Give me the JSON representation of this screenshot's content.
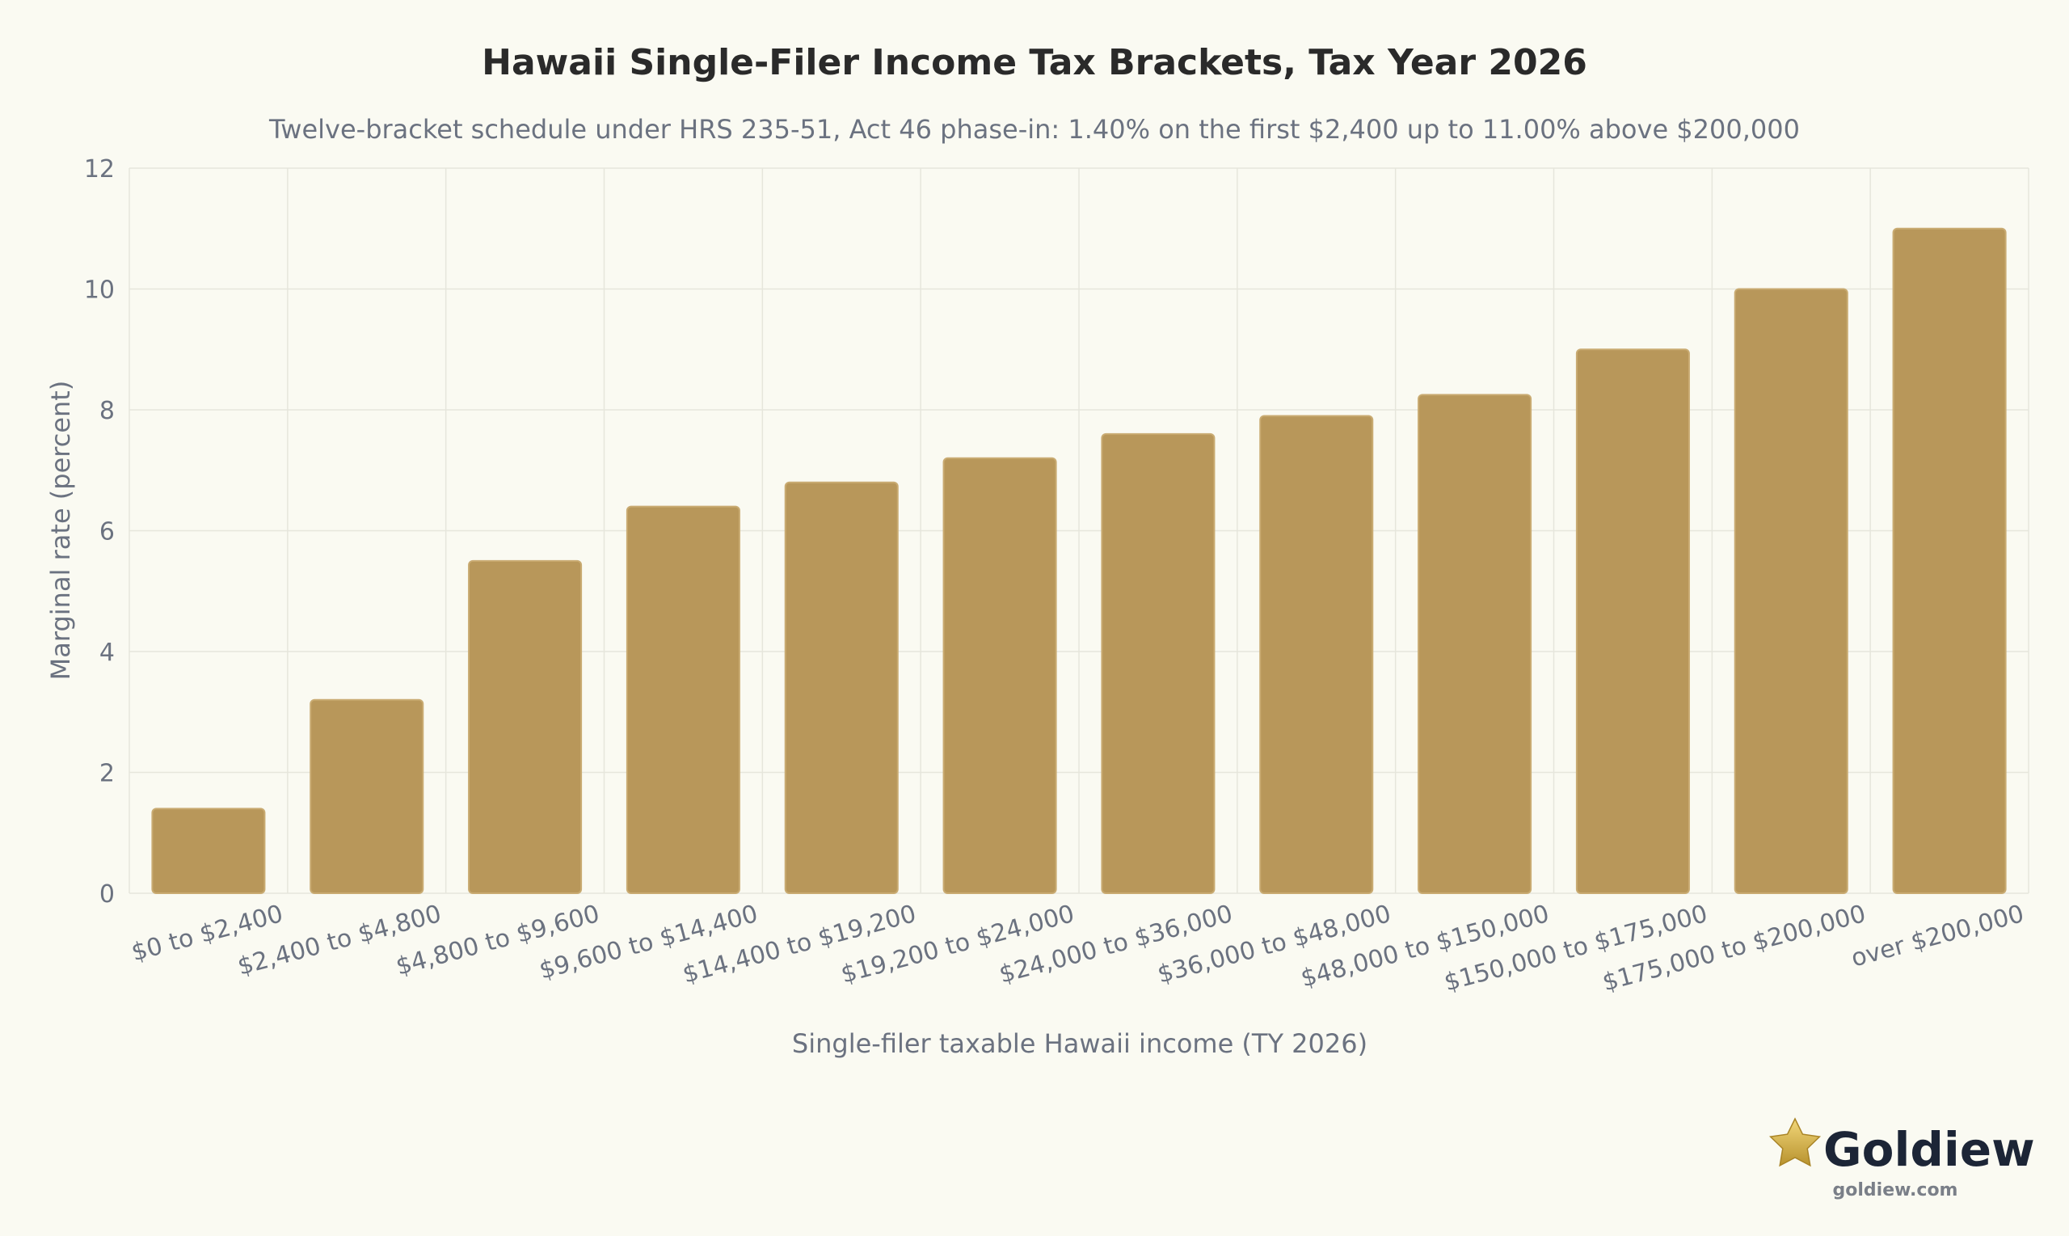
{
  "chart_data": {
    "type": "bar",
    "title": "Hawaii Single-Filer Income Tax Brackets, Tax Year 2026",
    "subtitle": "Twelve-bracket schedule under HRS 235-51, Act 46 phase-in: 1.40% on the first $2,400 up to 11.00% above $200,000",
    "xlabel": "Single-filer taxable Hawaii income (TY 2026)",
    "ylabel": "Marginal rate (percent)",
    "ylim": [
      0,
      12
    ],
    "yticks": [
      0,
      2,
      4,
      6,
      8,
      10,
      12
    ],
    "grid": true,
    "categories": [
      "$0 to $2,400",
      "$2,400 to $4,800",
      "$4,800 to $9,600",
      "$9,600 to $14,400",
      "$14,400 to $19,200",
      "$19,200 to $24,000",
      "$24,000 to $36,000",
      "$36,000 to $48,000",
      "$48,000 to $150,000",
      "$150,000 to $175,000",
      "$175,000 to $200,000",
      "over $200,000"
    ],
    "values": [
      1.4,
      3.2,
      5.5,
      6.4,
      6.8,
      7.2,
      7.6,
      7.9,
      8.25,
      9.0,
      10.0,
      11.0
    ],
    "bar_color": "#b8975a"
  },
  "logo": {
    "name": "Goldiew",
    "url": "goldiew.com",
    "icon": "star-icon",
    "star_color": "#d4b24c"
  }
}
